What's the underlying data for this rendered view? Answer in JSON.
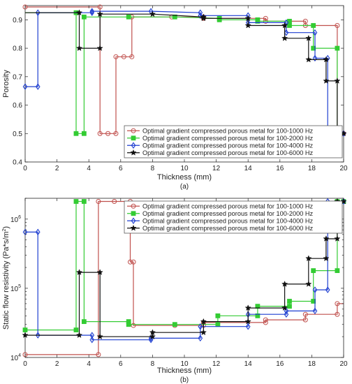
{
  "chart_data": [
    {
      "type": "line",
      "panel_label": "(a)",
      "xlabel": "Thickness (mm)",
      "ylabel": "Porosity",
      "xlim": [
        0,
        20
      ],
      "ylim": [
        0.4,
        0.95
      ],
      "y_scale": "linear",
      "x_ticks": [
        "0",
        "2",
        "4",
        "6",
        "8",
        "10",
        "12",
        "14",
        "16",
        "18",
        "20"
      ],
      "y_ticks": [
        "0.4",
        "0.5",
        "0.6",
        "0.7",
        "0.8",
        "0.9"
      ],
      "legend_position": "bottom-right",
      "series": [
        {
          "name": "Optimal gradient compressed porous metal for 100-1000 Hz",
          "color": "#c0504d",
          "marker": "circle",
          "x": [
            0,
            4.7,
            4.7,
            5.2,
            5.7,
            5.7,
            6.2,
            6.7,
            6.7,
            9.2,
            11.2,
            11.2,
            15.1,
            15.1,
            17.6,
            17.6,
            19.6,
            19.6,
            20
          ],
          "y": [
            0.945,
            0.945,
            0.5,
            0.5,
            0.5,
            0.77,
            0.77,
            0.77,
            0.91,
            0.91,
            0.91,
            0.905,
            0.905,
            0.895,
            0.895,
            0.88,
            0.88,
            0.5,
            0.5
          ]
        },
        {
          "name": "Optimal gradient compressed porous metal for 100-2000 Hz",
          "color": "#33cc33",
          "marker": "square",
          "x": [
            0,
            3.2,
            3.2,
            3.7,
            3.7,
            6.5,
            9.4,
            12.2,
            12.2,
            14.6,
            14.6,
            16.6,
            16.6,
            18.1,
            18.1,
            19.6,
            19.6,
            20
          ],
          "y": [
            0.925,
            0.925,
            0.5,
            0.5,
            0.91,
            0.91,
            0.91,
            0.905,
            0.9,
            0.9,
            0.895,
            0.895,
            0.88,
            0.88,
            0.8,
            0.8,
            0.5,
            0.5
          ],
          "markers_x": [
            3.2,
            3.7,
            6.5,
            9.4,
            12.2,
            14.6,
            16.6,
            18.1,
            19.6
          ]
        },
        {
          "name": "Optimal gradient compressed porous metal for 100-4000 Hz",
          "color": "#1f3fd1",
          "marker": "diamond",
          "x": [
            0,
            0.8,
            0.8,
            4.2,
            4.2,
            7.9,
            11.0,
            11.0,
            14.0,
            14.0,
            16.4,
            16.4,
            18.2,
            18.2,
            19.0,
            19.0,
            20
          ],
          "y": [
            0.665,
            0.665,
            0.925,
            0.925,
            0.93,
            0.93,
            0.925,
            0.915,
            0.915,
            0.89,
            0.89,
            0.855,
            0.855,
            0.765,
            0.765,
            0.5,
            0.5
          ],
          "markers_x": [
            0,
            0.8,
            4.2,
            7.9,
            11.0,
            14.0,
            16.4,
            18.2,
            19.0,
            20
          ]
        },
        {
          "name": "Optimal gradient compressed porous metal for 100-6000 Hz",
          "color": "#111111",
          "marker": "star",
          "x": [
            0,
            3.4,
            3.4,
            4.7,
            4.7,
            8.0,
            11.2,
            11.2,
            14.0,
            14.0,
            16.3,
            16.3,
            17.8,
            17.8,
            18.9,
            18.9,
            19.6,
            19.6,
            20
          ],
          "y": [
            0.925,
            0.925,
            0.8,
            0.8,
            0.92,
            0.92,
            0.91,
            0.905,
            0.905,
            0.88,
            0.88,
            0.835,
            0.835,
            0.76,
            0.76,
            0.685,
            0.685,
            0.5,
            0.5
          ],
          "markers_x": [
            3.4,
            4.7,
            8.0,
            11.2,
            14.0,
            16.3,
            17.8,
            18.9,
            19.6,
            20
          ]
        }
      ]
    },
    {
      "type": "line",
      "panel_label": "(b)",
      "xlabel": "Thickness (mm)",
      "ylabel": "Static flow resistivity (Pa*s/m",
      "ylabel_sup": "2",
      "ylabel_close": ")",
      "xlim": [
        0,
        20
      ],
      "ylim": [
        10000,
        2000000
      ],
      "y_scale": "log",
      "x_ticks": [
        "0",
        "2",
        "4",
        "6",
        "8",
        "10",
        "12",
        "14",
        "16",
        "18",
        "20"
      ],
      "y_ticks": [
        {
          "base": "10",
          "exp": "4",
          "value": 10000
        },
        {
          "base": "10",
          "exp": "5",
          "value": 100000
        },
        {
          "base": "10",
          "exp": "6",
          "value": 1000000
        }
      ],
      "legend_position": "top-right",
      "series": [
        {
          "name": "Optimal gradient compressed porous metal for 100-1000 Hz",
          "color": "#c0504d",
          "marker": "circle",
          "x": [
            0,
            4.6,
            4.6,
            6.6,
            6.6,
            6.8,
            6.8,
            9.4,
            11.2,
            11.2,
            15.1,
            15.1,
            17.6,
            17.6,
            19.6,
            19.6,
            20
          ],
          "y": [
            11000,
            11000,
            1800000,
            1800000,
            240000,
            240000,
            29000,
            29000,
            29000,
            32000,
            32000,
            35000,
            35000,
            42000,
            42000,
            60000,
            60000
          ],
          "markers_x": [
            0,
            4.6,
            5.6,
            6.6,
            6.8,
            9.4,
            11.2,
            15.1,
            17.6,
            19.6
          ]
        },
        {
          "name": "Optimal gradient compressed porous metal for 100-2000 Hz",
          "color": "#33cc33",
          "marker": "square",
          "x": [
            0,
            3.2,
            3.2,
            3.7,
            3.7,
            6.5,
            6.5,
            9.4,
            12.1,
            12.1,
            14.6,
            14.6,
            16.6,
            16.6,
            18.1,
            18.1,
            19.6,
            19.6,
            20
          ],
          "y": [
            25000,
            25000,
            1800000,
            1800000,
            33000,
            33000,
            30000,
            30000,
            30000,
            40000,
            40000,
            55000,
            55000,
            65000,
            65000,
            180000,
            180000,
            1800000,
            1800000
          ],
          "markers_x": [
            0,
            3.2,
            3.7,
            6.5,
            9.4,
            12.1,
            14.6,
            16.6,
            18.1,
            19.6,
            20
          ]
        },
        {
          "name": "Optimal gradient compressed porous metal for 100-4000 Hz",
          "color": "#1f3fd1",
          "marker": "diamond",
          "x": [
            0,
            0.8,
            0.8,
            4.2,
            4.2,
            7.9,
            7.9,
            11.0,
            11.0,
            14.0,
            14.0,
            16.4,
            16.4,
            18.2,
            18.2,
            19.0,
            19.0,
            20
          ],
          "y": [
            650000,
            650000,
            21000,
            21000,
            18000,
            18000,
            19000,
            19000,
            28000,
            28000,
            42000,
            42000,
            47000,
            47000,
            95000,
            95000,
            1800000,
            1800000
          ],
          "markers_x": [
            0,
            0.8,
            4.2,
            7.9,
            11.0,
            14.0,
            16.4,
            18.2,
            19.0,
            20
          ]
        },
        {
          "name": "Optimal gradient compressed porous metal for 100-6000 Hz",
          "color": "#111111",
          "marker": "star",
          "x": [
            0,
            3.4,
            3.4,
            4.7,
            4.7,
            8.0,
            8.0,
            11.2,
            11.2,
            14.0,
            14.0,
            16.3,
            16.3,
            17.8,
            17.8,
            18.9,
            18.9,
            19.6,
            19.6,
            20
          ],
          "y": [
            21000,
            21000,
            170000,
            170000,
            20000,
            20000,
            23000,
            23000,
            33000,
            33000,
            52000,
            52000,
            115000,
            115000,
            270000,
            270000,
            520000,
            520000,
            1800000,
            1800000
          ],
          "markers_x": [
            0,
            3.4,
            4.7,
            8.0,
            11.2,
            14.0,
            16.3,
            17.8,
            18.9,
            19.6,
            20
          ]
        }
      ]
    }
  ]
}
